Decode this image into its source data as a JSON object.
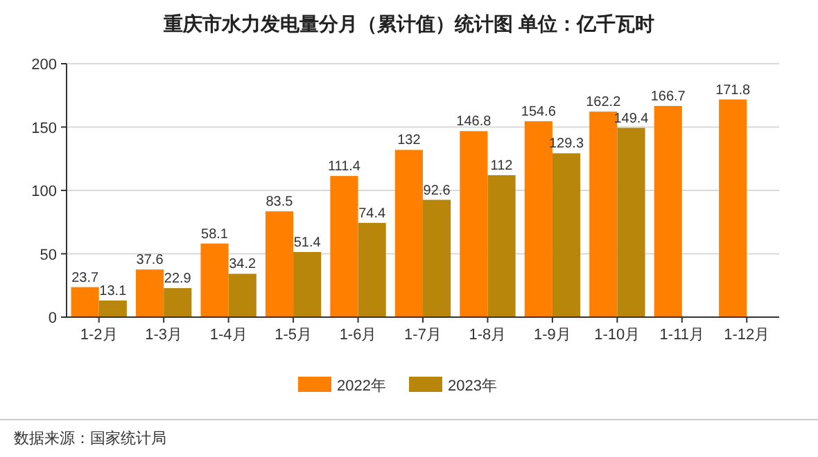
{
  "chart_data": {
    "type": "bar",
    "title": "重庆市水力发电量分月（累计值）统计图 单位：亿千瓦时",
    "categories": [
      "1-2月",
      "1-3月",
      "1-4月",
      "1-5月",
      "1-6月",
      "1-7月",
      "1-8月",
      "1-9月",
      "1-10月",
      "1-11月",
      "1-12月"
    ],
    "series": [
      {
        "name": "2022年",
        "color": "#ff8000",
        "values": [
          23.7,
          37.6,
          58.1,
          83.5,
          111.4,
          132,
          146.8,
          154.6,
          162.2,
          166.7,
          171.8
        ]
      },
      {
        "name": "2023年",
        "color": "#b8860b",
        "values": [
          13.1,
          22.9,
          34.2,
          51.4,
          74.4,
          92.6,
          112,
          129.3,
          149.4,
          null,
          null
        ]
      }
    ],
    "ylim": [
      0,
      200
    ],
    "yticks": [
      0,
      50,
      100,
      150,
      200
    ],
    "grid": "y",
    "legend": "bottom",
    "data_labels": true,
    "annotations": [
      "数据来源：国家统计局"
    ]
  }
}
